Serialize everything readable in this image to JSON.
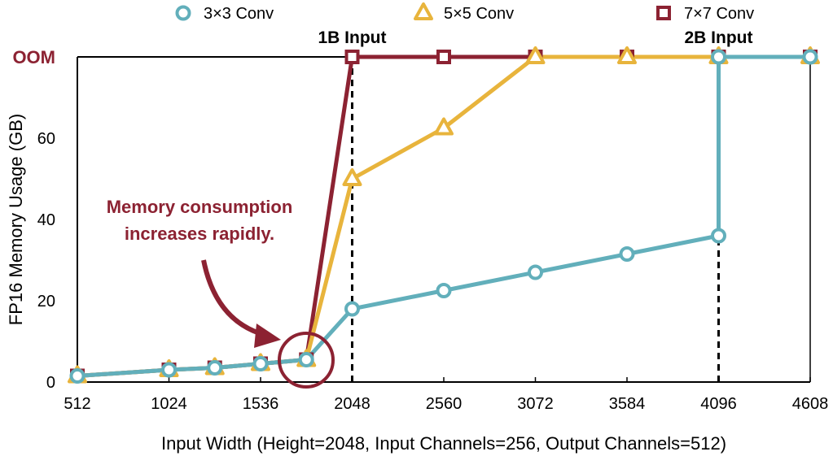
{
  "chart_data": {
    "type": "line",
    "xlabel": "Input Width (Height=2048, Input Channels=256, Output Channels=512)",
    "ylabel": "FP16 Memory Usage (GB)",
    "xticks": [
      "512",
      "1024",
      "1536",
      "2048",
      "2560",
      "3072",
      "3584",
      "4096",
      "4608"
    ],
    "yticks": [
      "0",
      "20",
      "40",
      "60"
    ],
    "oom_label": "OOM",
    "oom_value": 80,
    "xlim": [
      512,
      4608
    ],
    "ylim": [
      0,
      80
    ],
    "grid": false,
    "legend_position": "top",
    "series": [
      {
        "name": "3×3 Conv",
        "marker": "circle",
        "color": "#62AFBB",
        "x": [
          512,
          1024,
          1280,
          1536,
          1792,
          2048,
          2560,
          3072,
          3584,
          4096,
          4096,
          4608
        ],
        "y": [
          1.5,
          3,
          3.5,
          4.5,
          5.5,
          18,
          22.5,
          27,
          31.5,
          36,
          "OOM",
          "OOM"
        ]
      },
      {
        "name": "5×5 Conv",
        "marker": "triangle",
        "color": "#E8B43C",
        "x": [
          512,
          1024,
          1280,
          1536,
          1792,
          2048,
          2560,
          3072,
          3584,
          4096,
          4608
        ],
        "y": [
          1.5,
          3,
          3.5,
          4.5,
          5.5,
          50,
          62.5,
          "OOM",
          "OOM",
          "OOM",
          "OOM"
        ]
      },
      {
        "name": "7×7 Conv",
        "marker": "square",
        "color": "#8C2232",
        "x": [
          512,
          1024,
          1280,
          1536,
          1792,
          2048,
          2560,
          3072,
          3584,
          4096,
          4608
        ],
        "y": [
          1.5,
          3,
          3.5,
          4.5,
          5.5,
          "OOM",
          "OOM",
          "OOM",
          "OOM",
          "OOM",
          "OOM"
        ]
      }
    ],
    "vlines": [
      {
        "x": 2048,
        "label": "1B Input"
      },
      {
        "x": 4096,
        "label": "2B Input"
      }
    ],
    "annotation": {
      "lines": [
        "Memory consumption",
        "increases rapidly."
      ],
      "color": "#8C2232"
    }
  }
}
